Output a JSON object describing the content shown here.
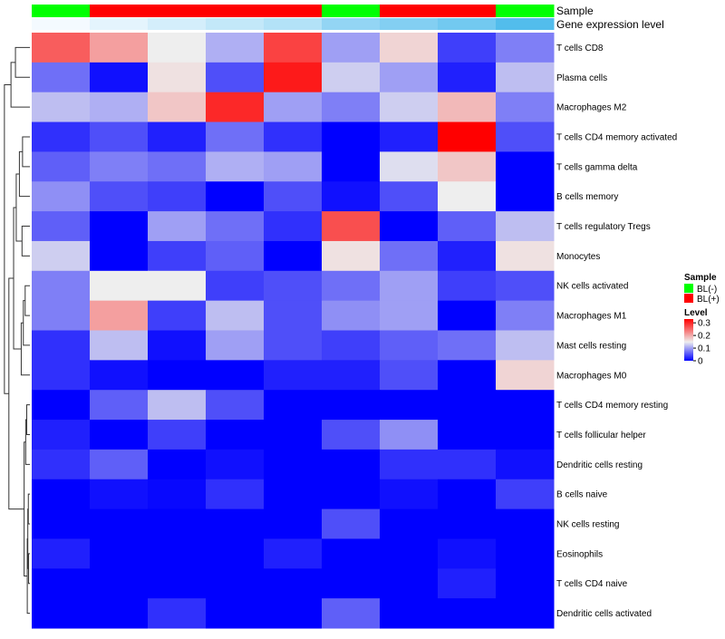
{
  "chart_data": {
    "type": "heatmap",
    "annotation_titles": [
      "Sample",
      "Gene expression level"
    ],
    "rows": [
      "T cells CD8",
      "Plasma cells",
      "Macrophages M2",
      "T cells CD4 memory activated",
      "T cells gamma delta",
      "B cells memory",
      "T cells regulatory  Tregs",
      "Monocytes",
      "NK cells activated",
      "Macrophages M1",
      "Mast cells resting",
      "Macrophages M0",
      "T cells CD4 memory resting",
      "T cells follicular helper",
      "Dendritic cells resting",
      "B cells naive",
      "NK cells resting",
      "Eosinophils",
      "T cells CD4 naive",
      "Dendritic cells activated"
    ],
    "sample_groups": [
      "BL(-)",
      "BL(+)",
      "BL(+)",
      "BL(+)",
      "BL(+)",
      "BL(-)",
      "BL(+)",
      "BL(+)",
      "BL(-)"
    ],
    "expression_level": [
      0.0,
      0.05,
      0.1,
      0.15,
      0.2,
      0.3,
      0.35,
      0.4,
      0.5
    ],
    "values": [
      [
        0.26,
        0.21,
        0.15,
        0.11,
        0.28,
        0.1,
        0.17,
        0.04,
        0.08
      ],
      [
        0.07,
        0.01,
        0.16,
        0.05,
        0.31,
        0.13,
        0.1,
        0.02,
        0.12
      ],
      [
        0.12,
        0.11,
        0.18,
        0.3,
        0.1,
        0.08,
        0.13,
        0.19,
        0.08
      ],
      [
        0.03,
        0.05,
        0.02,
        0.07,
        0.03,
        0.0,
        0.02,
        0.33,
        0.05
      ],
      [
        0.06,
        0.08,
        0.07,
        0.11,
        0.1,
        0.0,
        0.14,
        0.18,
        0.0
      ],
      [
        0.09,
        0.05,
        0.04,
        0.0,
        0.05,
        0.01,
        0.05,
        0.15,
        0.0
      ],
      [
        0.06,
        0.0,
        0.1,
        0.07,
        0.03,
        0.27,
        0.0,
        0.06,
        0.12
      ],
      [
        0.13,
        0.0,
        0.04,
        0.06,
        0.0,
        0.16,
        0.07,
        0.02,
        0.16
      ],
      [
        0.08,
        0.15,
        0.15,
        0.04,
        0.05,
        0.07,
        0.1,
        0.04,
        0.05
      ],
      [
        0.08,
        0.21,
        0.04,
        0.12,
        0.05,
        0.09,
        0.1,
        0.0,
        0.08
      ],
      [
        0.03,
        0.12,
        0.01,
        0.1,
        0.05,
        0.04,
        0.06,
        0.07,
        0.12
      ],
      [
        0.03,
        0.01,
        0.0,
        0.0,
        0.02,
        0.02,
        0.05,
        0.0,
        0.17
      ],
      [
        0.0,
        0.06,
        0.12,
        0.05,
        0.0,
        0.0,
        0.0,
        0.0,
        0.0
      ],
      [
        0.02,
        0.0,
        0.04,
        0.0,
        0.0,
        0.05,
        0.09,
        0.0,
        0.0
      ],
      [
        0.03,
        0.06,
        0.0,
        0.01,
        0.0,
        0.0,
        0.03,
        0.03,
        0.01
      ],
      [
        0.0,
        0.01,
        0.005,
        0.03,
        0.0,
        0.0,
        0.01,
        0.0,
        0.04
      ],
      [
        0.0,
        0.0,
        0.0,
        0.0,
        0.0,
        0.05,
        0.0,
        0.0,
        0.0
      ],
      [
        0.02,
        0.0,
        0.0,
        0.0,
        0.02,
        0.0,
        0.0,
        0.01,
        0.0
      ],
      [
        0.0,
        0.0,
        0.0,
        0.0,
        0.0,
        0.0,
        0.0,
        0.02,
        0.0
      ],
      [
        0.0,
        0.0,
        0.03,
        0.0,
        0.0,
        0.06,
        0.0,
        0.0,
        0.0
      ]
    ],
    "legend": {
      "sample_title": "Sample",
      "sample_entries": [
        {
          "label": "BL(-)",
          "color": "#00ff00"
        },
        {
          "label": "BL(+)",
          "color": "#ff0000"
        }
      ],
      "level_title": "Level",
      "level_ticks": [
        0.3,
        0.2,
        0.1,
        0
      ],
      "level_tick_labels": [
        "0.3",
        "0.2",
        "0.1",
        "0"
      ],
      "placement": "right"
    },
    "colorscale": {
      "low": "#0000ff",
      "mid": "#eeeeee",
      "high": "#ff0000",
      "range": [
        0,
        0.33
      ],
      "midpoint": 0.15
    },
    "expression_colorscale": {
      "low": "#f4faff",
      "high": "#52bdec"
    }
  }
}
